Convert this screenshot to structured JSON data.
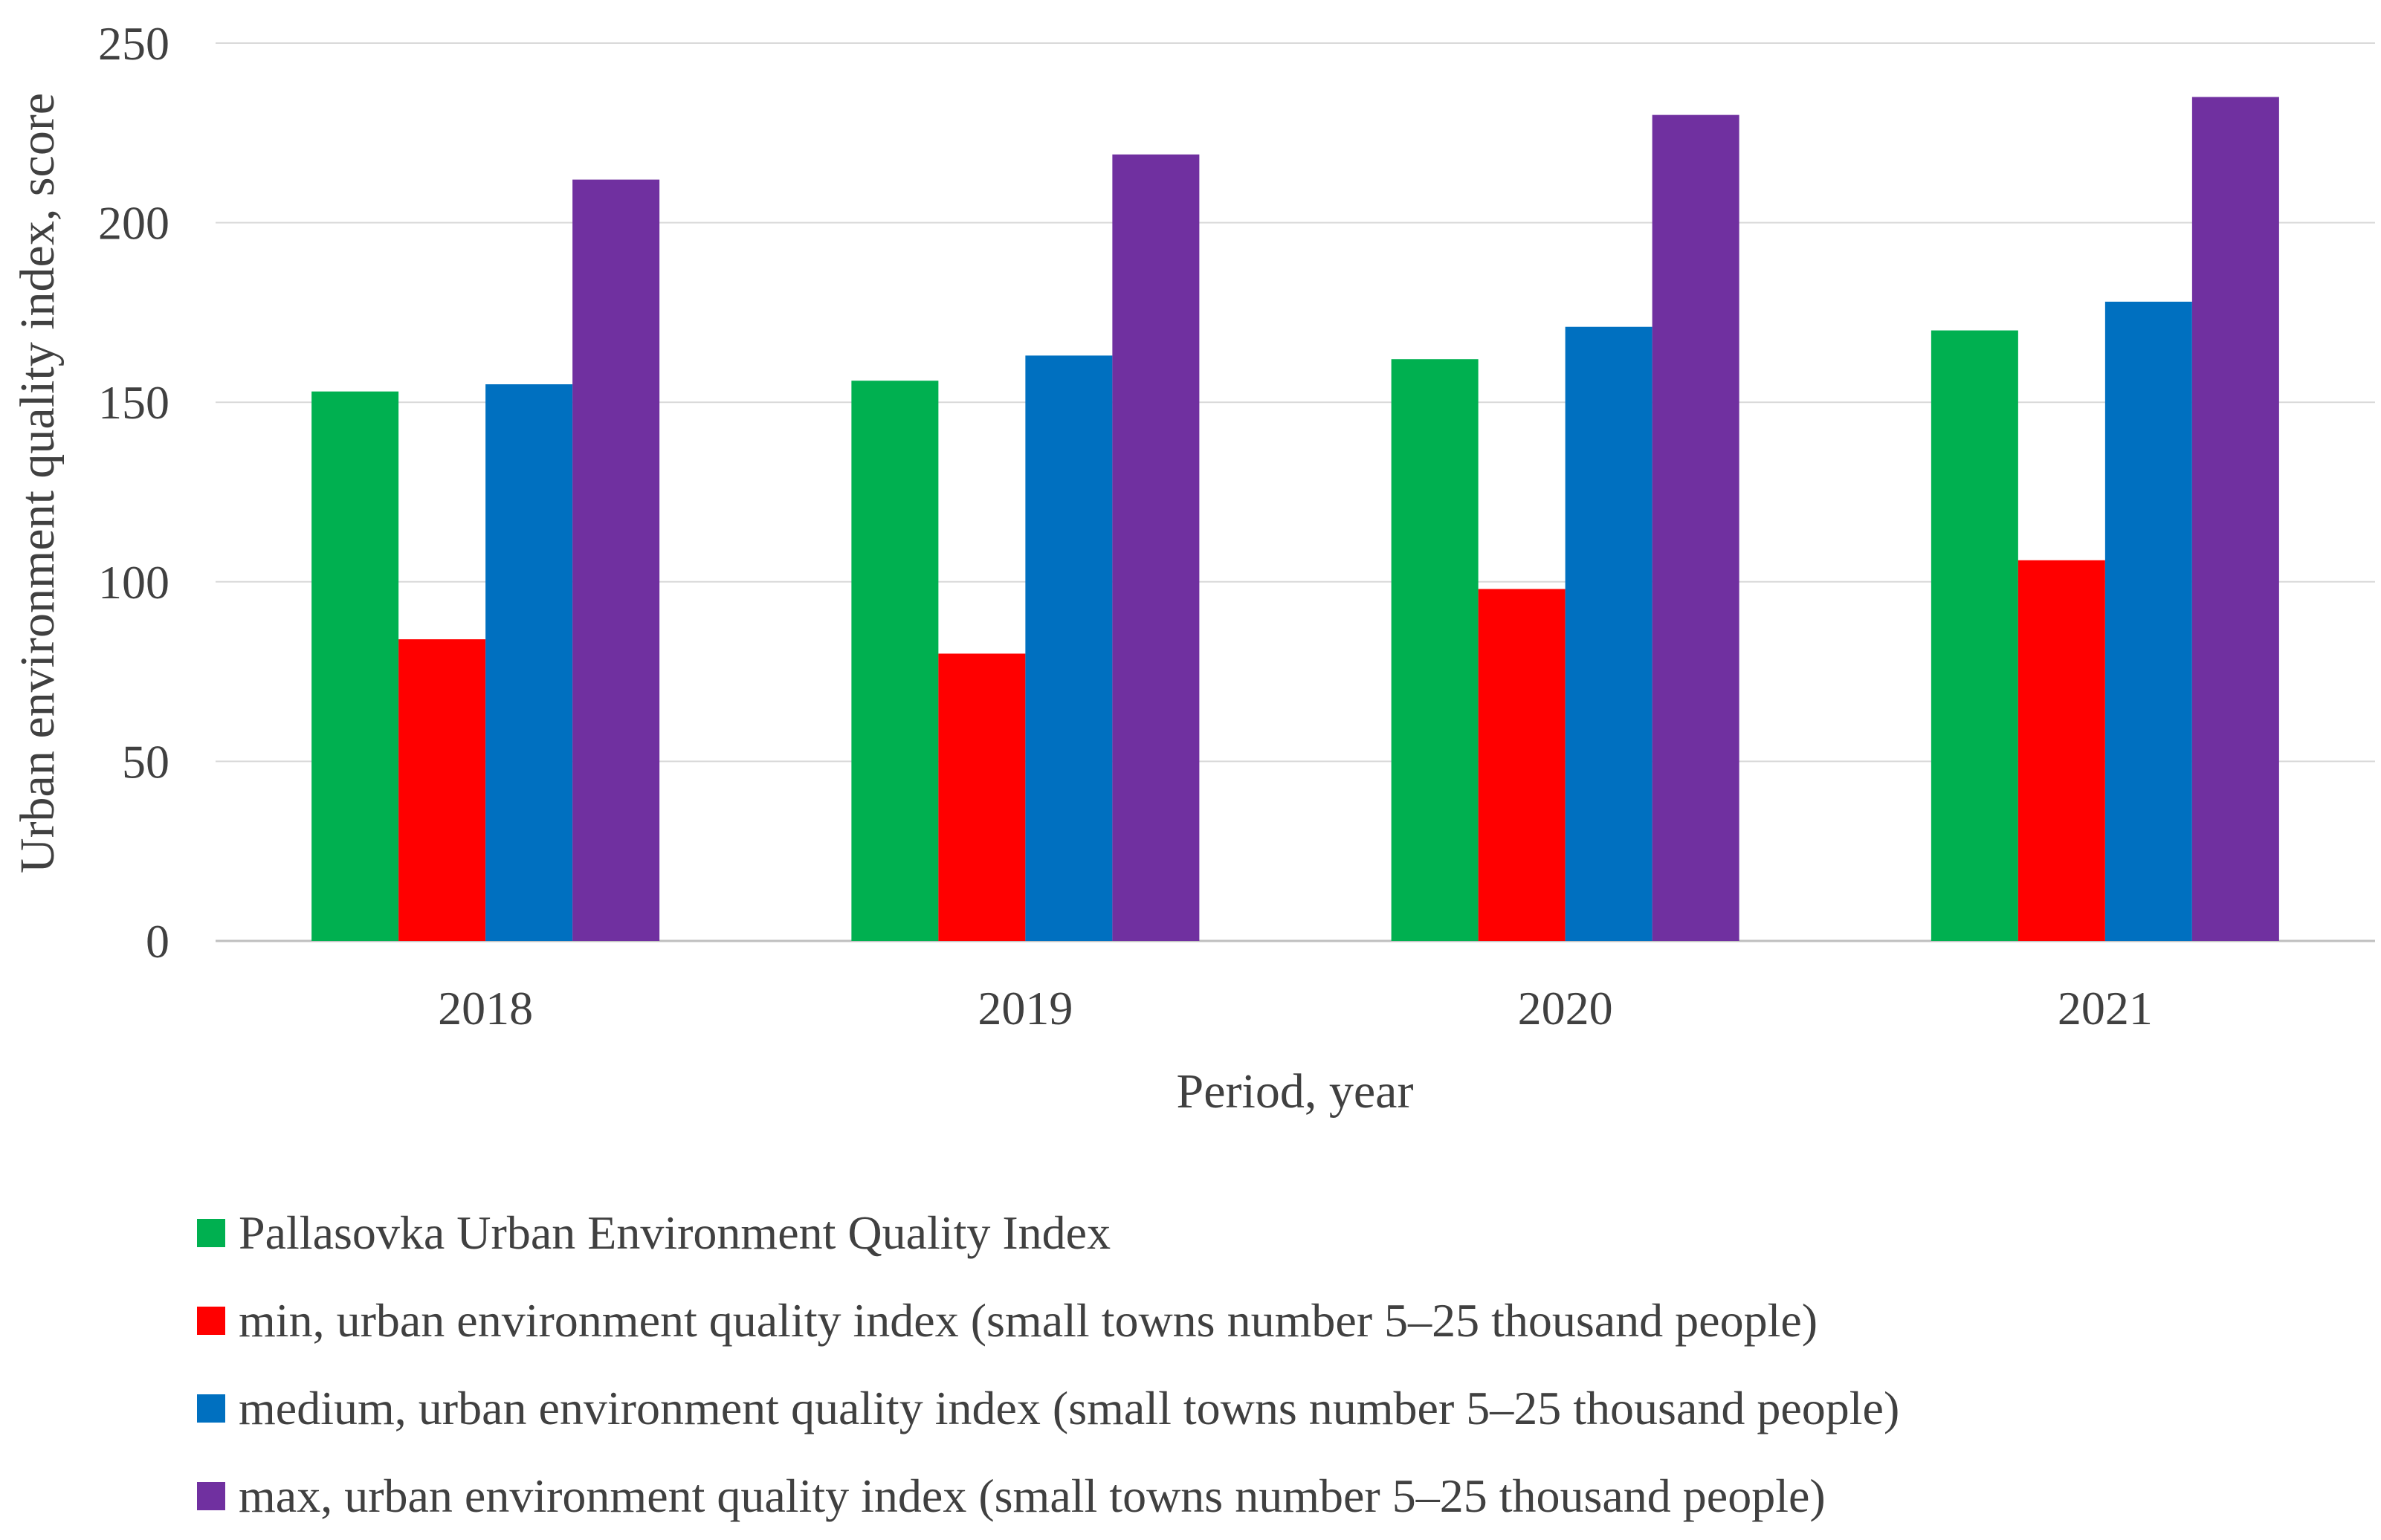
{
  "chart_data": {
    "type": "bar",
    "categories": [
      "2018",
      "2019",
      "2020",
      "2021"
    ],
    "series": [
      {
        "name": "Pallasovka Urban Environment Quality Index",
        "color": "#00B050",
        "values": [
          153,
          156,
          162,
          170
        ]
      },
      {
        "name": "min, urban environment quality index (small towns number 5–25 thousand people)",
        "color": "#FF0000",
        "values": [
          84,
          80,
          98,
          106
        ]
      },
      {
        "name": "medium, urban environment quality index (small towns number 5–25 thousand people)",
        "color": "#0070C0",
        "values": [
          155,
          163,
          171,
          178
        ]
      },
      {
        "name": "max, urban environment quality index (small towns number 5–25 thousand people)",
        "color": "#7030A0",
        "values": [
          212,
          219,
          230,
          235
        ]
      }
    ],
    "title": "",
    "xlabel": "Period, year",
    "ylabel": "Urban environment quality index, score",
    "ylim": [
      0,
      250
    ],
    "yticks": [
      "0",
      "50",
      "100",
      "150",
      "200",
      "250"
    ],
    "grid": true,
    "legend": "bottom"
  }
}
